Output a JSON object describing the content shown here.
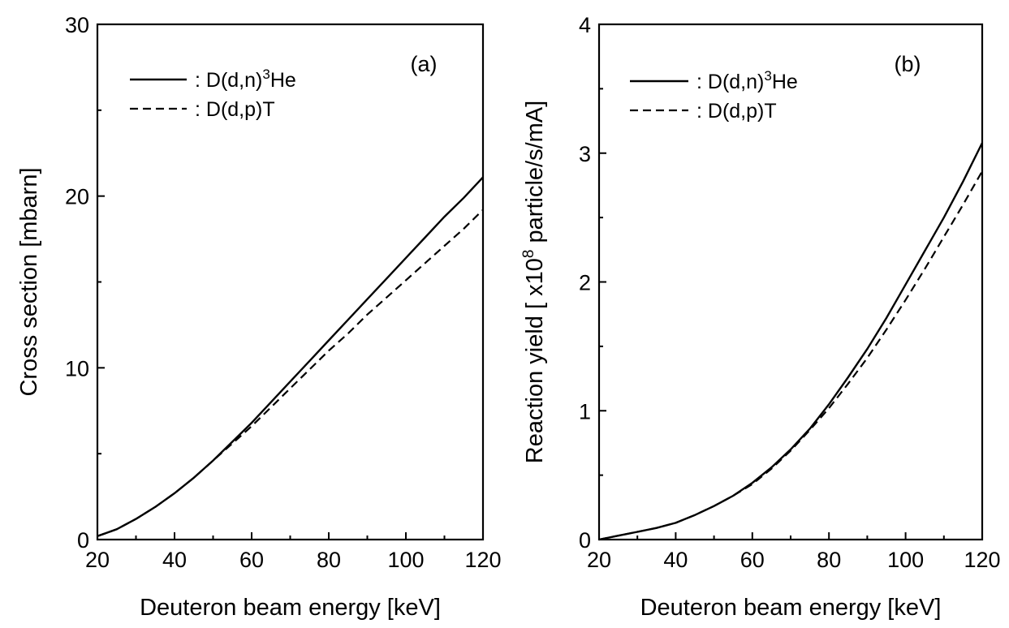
{
  "chart_data": [
    {
      "type": "line",
      "panel_label": "(a)",
      "xlabel": "Deuteron beam energy [keV]",
      "ylabel": "Cross section [mbarn]",
      "xlim": [
        20,
        120
      ],
      "ylim": [
        0,
        30
      ],
      "x_ticks": [
        "20",
        "40",
        "60",
        "80",
        "100",
        "120"
      ],
      "y_ticks": [
        "0",
        "10",
        "20",
        "30"
      ],
      "legend": "top-left",
      "grid": false,
      "series": [
        {
          "name_text": "D(d,n)",
          "name_sup": "3",
          "name_tail": "He",
          "style": "solid",
          "x": [
            20,
            25,
            30,
            35,
            40,
            45,
            50,
            55,
            60,
            65,
            70,
            75,
            80,
            85,
            90,
            95,
            100,
            105,
            110,
            115,
            120
          ],
          "y": [
            0.2,
            0.6,
            1.2,
            1.9,
            2.7,
            3.6,
            4.6,
            5.7,
            6.8,
            8.0,
            9.2,
            10.4,
            11.6,
            12.8,
            14.0,
            15.2,
            16.4,
            17.6,
            18.8,
            19.9,
            21.1
          ]
        },
        {
          "name_text": "D(d,p)T",
          "name_sup": "",
          "name_tail": "",
          "style": "dashed",
          "x": [
            20,
            25,
            30,
            35,
            40,
            45,
            50,
            55,
            60,
            65,
            70,
            75,
            80,
            85,
            90,
            95,
            100,
            105,
            110,
            115,
            120
          ],
          "y": [
            0.2,
            0.6,
            1.2,
            1.9,
            2.7,
            3.6,
            4.6,
            5.6,
            6.6,
            7.7,
            8.8,
            9.9,
            11.0,
            12.0,
            13.1,
            14.1,
            15.1,
            16.1,
            17.1,
            18.1,
            19.2
          ]
        }
      ]
    },
    {
      "type": "line",
      "panel_label": "(b)",
      "xlabel": "Deuteron beam energy [keV]",
      "ylabel_text": "Reaction yield [ x10",
      "ylabel_sup": "8",
      "ylabel_tail": " particle/s/mA]",
      "xlim": [
        20,
        120
      ],
      "ylim": [
        0,
        4
      ],
      "x_ticks": [
        "20",
        "40",
        "60",
        "80",
        "100",
        "120"
      ],
      "y_ticks": [
        "0",
        "1",
        "2",
        "3",
        "4"
      ],
      "legend": "top-left",
      "grid": false,
      "series": [
        {
          "name_text": "D(d,n)",
          "name_sup": "3",
          "name_tail": "He",
          "style": "solid",
          "x": [
            20,
            25,
            30,
            35,
            40,
            45,
            50,
            55,
            60,
            65,
            70,
            75,
            80,
            85,
            90,
            95,
            100,
            105,
            110,
            115,
            120
          ],
          "y": [
            0.0,
            0.03,
            0.06,
            0.09,
            0.13,
            0.19,
            0.26,
            0.34,
            0.44,
            0.56,
            0.7,
            0.86,
            1.05,
            1.26,
            1.48,
            1.72,
            1.98,
            2.24,
            2.5,
            2.78,
            3.08
          ]
        },
        {
          "name_text": "D(d,p)T",
          "name_sup": "",
          "name_tail": "",
          "style": "dashed",
          "x": [
            20,
            25,
            30,
            35,
            40,
            45,
            50,
            55,
            60,
            65,
            70,
            75,
            80,
            85,
            90,
            95,
            100,
            105,
            110,
            115,
            120
          ],
          "y": [
            0.0,
            0.03,
            0.06,
            0.09,
            0.13,
            0.19,
            0.26,
            0.34,
            0.43,
            0.55,
            0.69,
            0.85,
            1.02,
            1.21,
            1.41,
            1.63,
            1.86,
            2.1,
            2.35,
            2.6,
            2.86
          ]
        }
      ]
    }
  ]
}
